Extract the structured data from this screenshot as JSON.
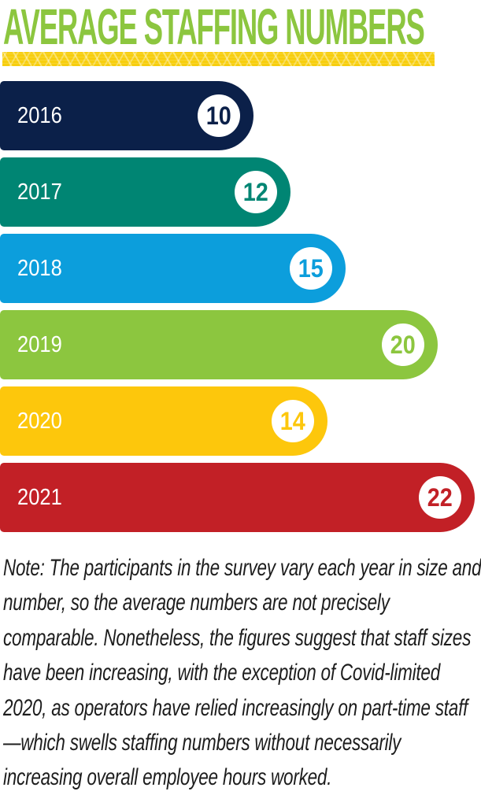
{
  "header": {
    "title": "AVERAGE STAFFING NUMBERS",
    "title_color": "#8CC63F",
    "divider_color": "#F7CE0E"
  },
  "chart_data": {
    "type": "bar",
    "orientation": "horizontal",
    "title": "AVERAGE STAFFING NUMBERS",
    "categories": [
      "2016",
      "2017",
      "2018",
      "2019",
      "2020",
      "2021"
    ],
    "values": [
      10,
      12,
      15,
      20,
      14,
      22
    ],
    "bar_colors": [
      "#0B2049",
      "#008573",
      "#0C9EDC",
      "#8CC63F",
      "#FDC70C",
      "#C22026"
    ],
    "value_badge_bg": "#FFFFFF",
    "xlim": [
      0,
      22
    ],
    "value_labels_shown": true,
    "gridlines": false,
    "legend": "none"
  },
  "note": {
    "text": "Note: The participants in the survey vary each year in size and number, so the average numbers are not precisely comparable. Nonetheless, the figures suggest that staff sizes have been increasing, with the exception of Covid-limited 2020, as operators have relied increasingly on part-time staff—which swells staffing numbers without necessarily increasing overall employee hours worked."
  }
}
